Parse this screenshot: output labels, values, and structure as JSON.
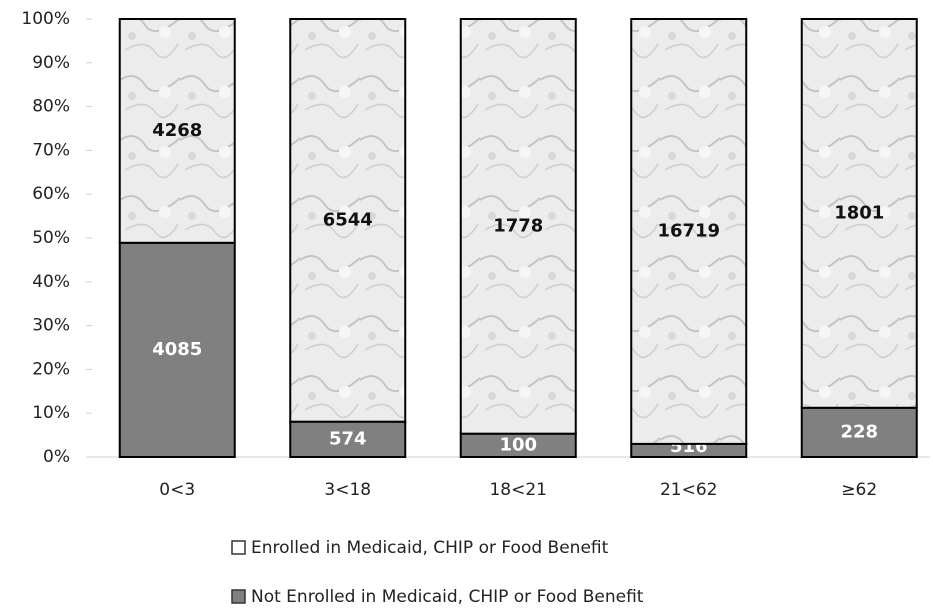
{
  "chart_data": {
    "type": "bar",
    "stacked": "percent",
    "categories": [
      "0<3",
      "3<18",
      "18<21",
      "21<62",
      "≥62"
    ],
    "series": [
      {
        "name": "Enrolled in Medicaid, CHIP or Food Benefit",
        "color": "#e4e4e4",
        "values": [
          4268,
          6544,
          1778,
          16719,
          1801
        ]
      },
      {
        "name": "Not Enrolled in Medicaid, CHIP or Food Benefit",
        "color": "#808080",
        "values": [
          4085,
          574,
          100,
          516,
          228
        ]
      }
    ],
    "ylim": [
      0,
      100
    ],
    "yticks": [
      {
        "value": 0,
        "label": "0%"
      },
      {
        "value": 10,
        "label": "10%"
      },
      {
        "value": 20,
        "label": "20%"
      },
      {
        "value": 30,
        "label": "30%"
      },
      {
        "value": 40,
        "label": "40%"
      },
      {
        "value": 50,
        "label": "50%"
      },
      {
        "value": 60,
        "label": "60%"
      },
      {
        "value": 70,
        "label": "70%"
      },
      {
        "value": 80,
        "label": "80%"
      },
      {
        "value": 90,
        "label": "90%"
      },
      {
        "value": 100,
        "label": "100%"
      }
    ],
    "legend": "bottom",
    "grid": false
  }
}
